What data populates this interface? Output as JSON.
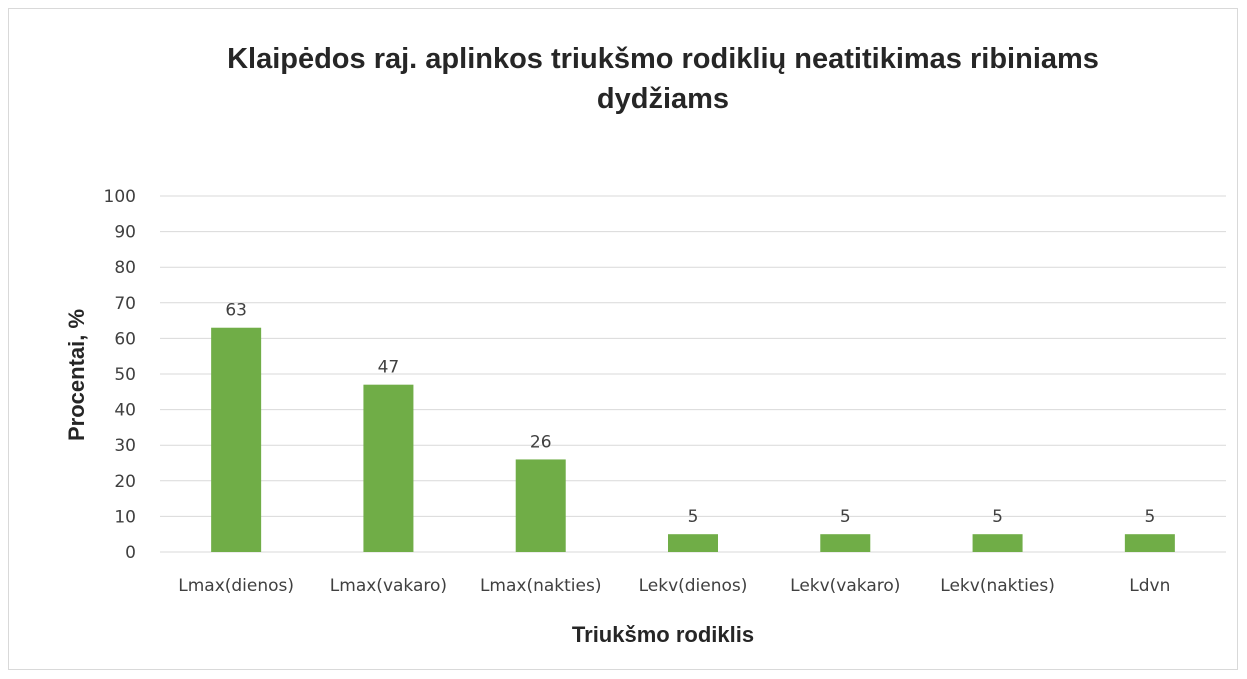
{
  "chart_data": {
    "type": "bar",
    "title_lines": [
      "Klaipėdos raj. aplinkos triukšmo rodiklių neatitikimas ribiniams",
      "dydžiams"
    ],
    "categories": [
      "Lmax(dienos)",
      "Lmax(vakaro)",
      "Lmax(nakties)",
      "Lekv(dienos)",
      "Lekv(vakaro)",
      "Lekv(nakties)",
      "Ldvn"
    ],
    "values": [
      63,
      47,
      26,
      5,
      5,
      5,
      5
    ],
    "data_labels": [
      "63",
      "47",
      "26",
      "5",
      "5",
      "5",
      "5"
    ],
    "xlabel": "Triukšmo rodiklis",
    "ylabel": "Procentai, %",
    "ylim": [
      0,
      100
    ],
    "yticks": [
      "0",
      "10",
      "20",
      "30",
      "40",
      "50",
      "60",
      "70",
      "80",
      "90",
      "100"
    ],
    "grid": true,
    "legend": "none",
    "bar_color": "#70ad47"
  }
}
